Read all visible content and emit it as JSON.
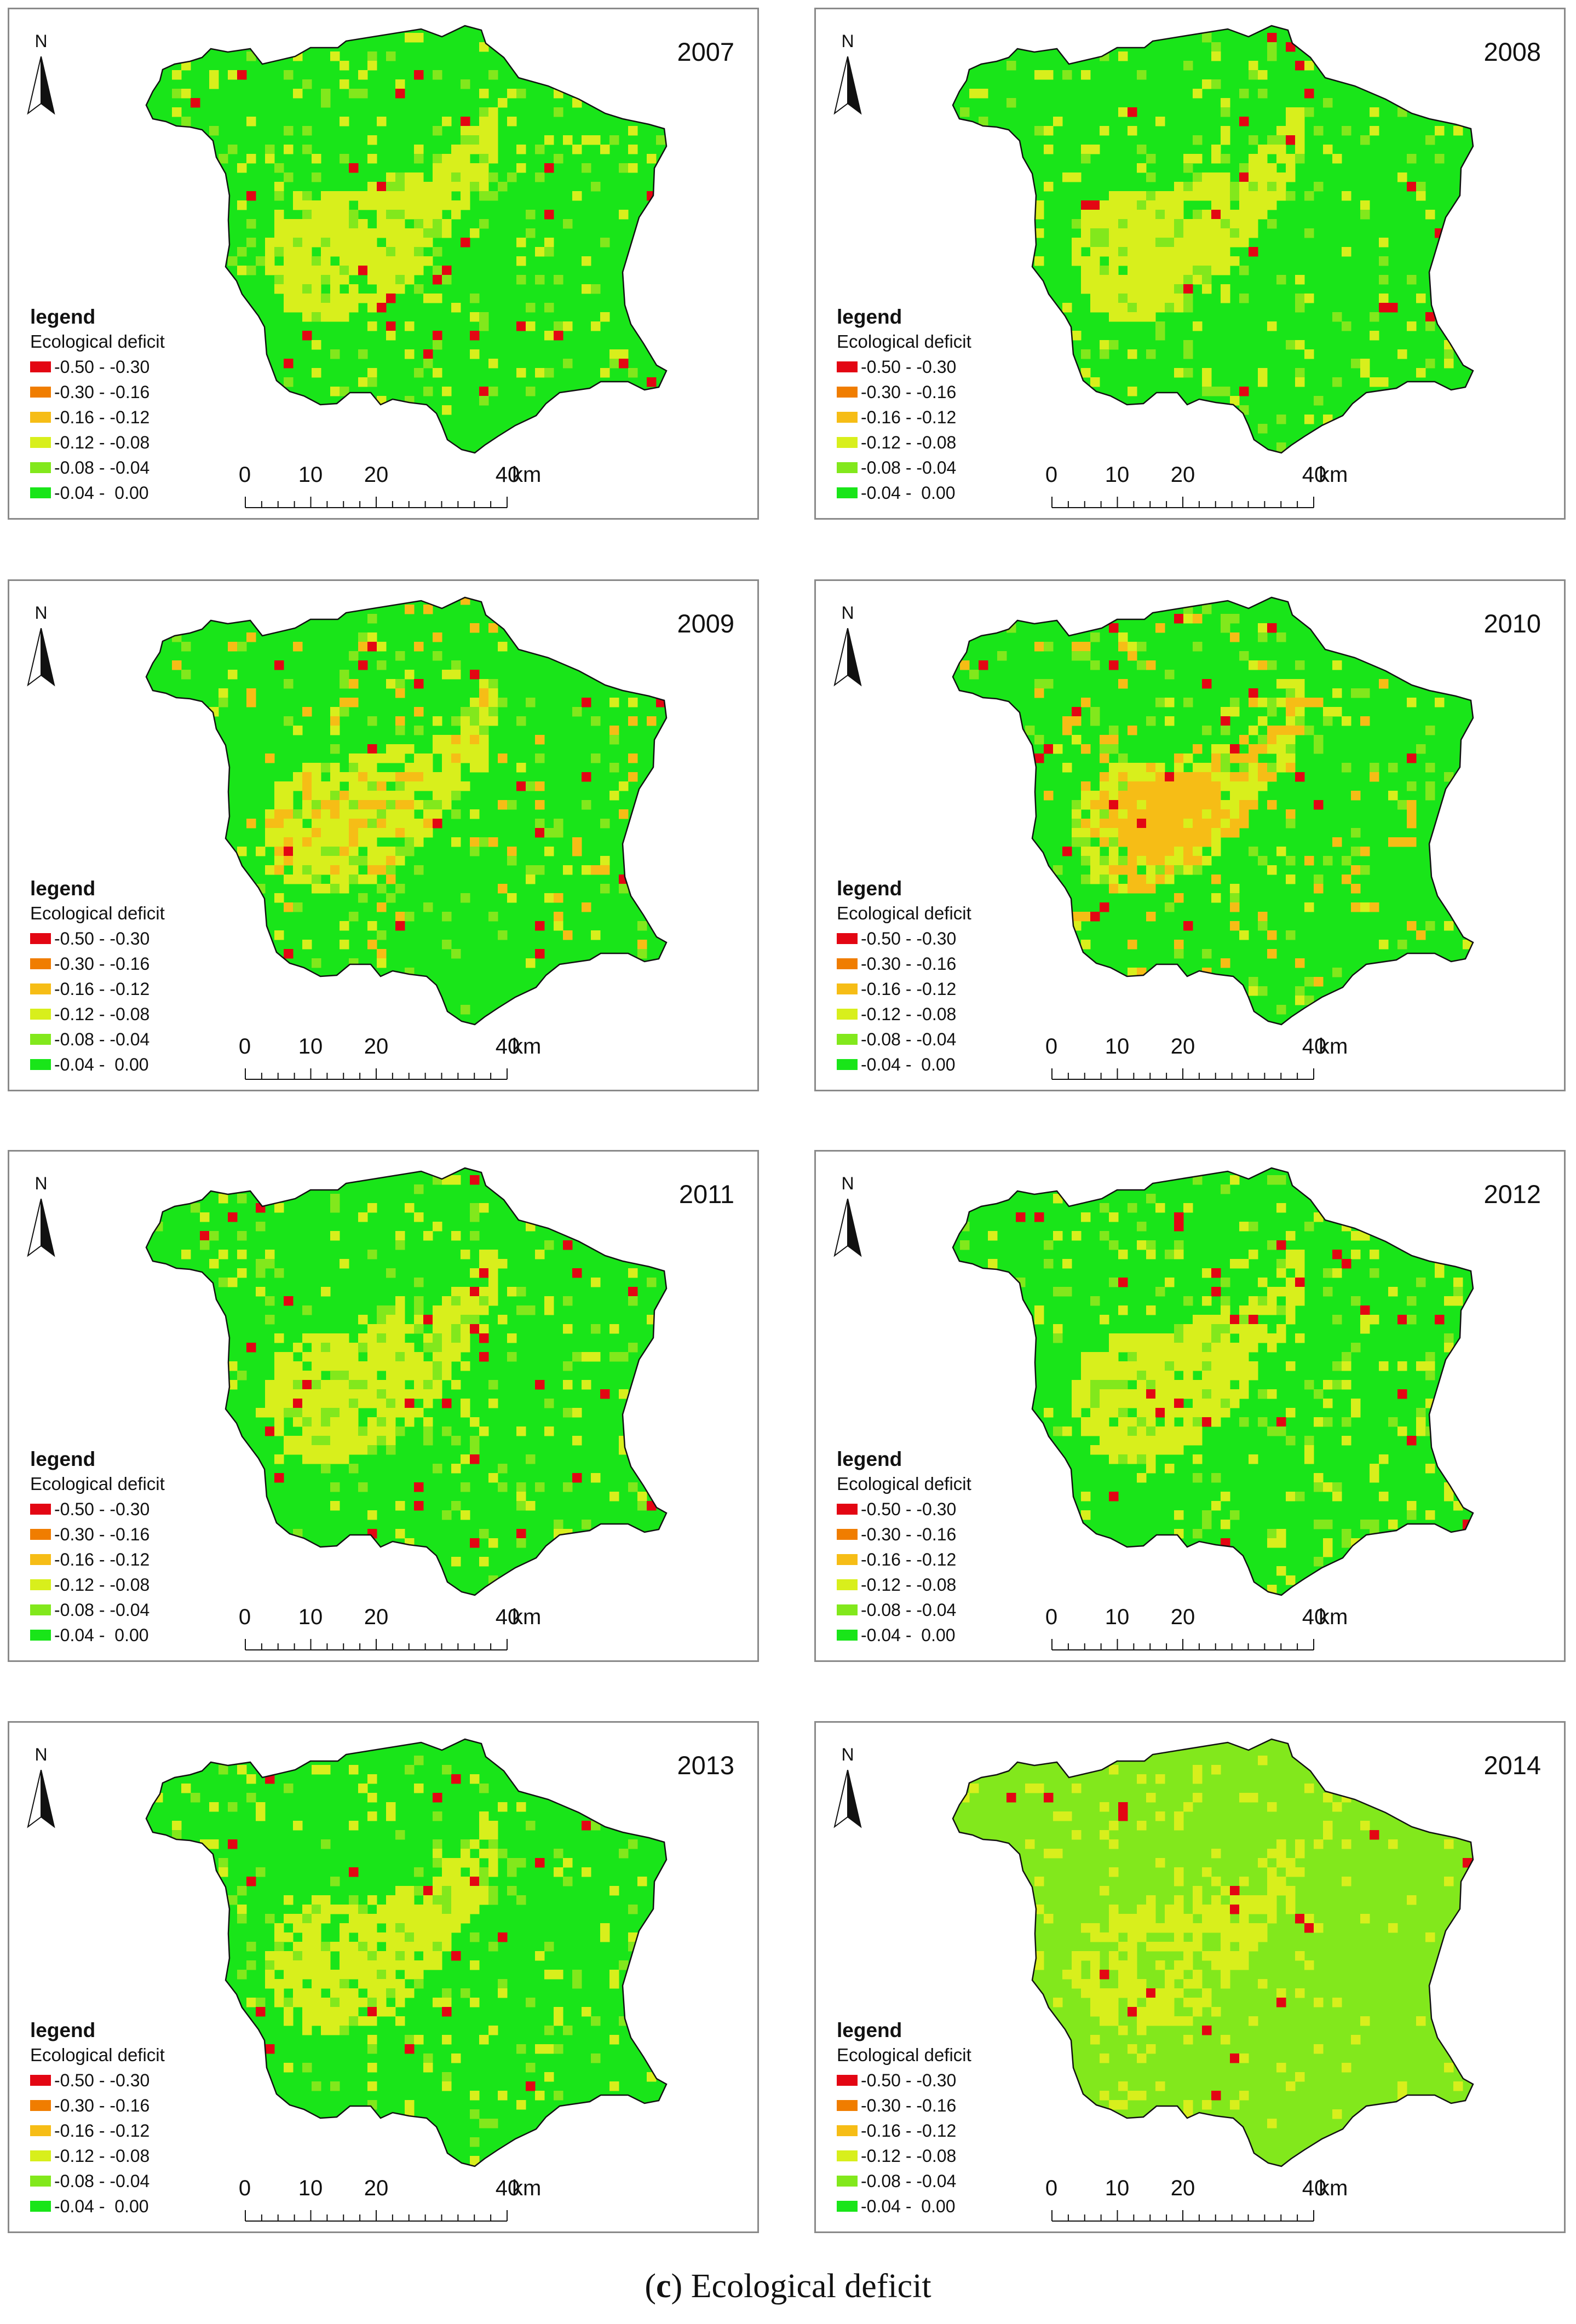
{
  "panels": [
    {
      "year": "2007",
      "emphasis": "baseline"
    },
    {
      "year": "2008",
      "emphasis": "baseline"
    },
    {
      "year": "2009",
      "emphasis": "more-orange"
    },
    {
      "year": "2010",
      "emphasis": "orange-core"
    },
    {
      "year": "2011",
      "emphasis": "baseline"
    },
    {
      "year": "2012",
      "emphasis": "baseline"
    },
    {
      "year": "2013",
      "emphasis": "baseline"
    },
    {
      "year": "2014",
      "emphasis": "lighter-green"
    }
  ],
  "north_label": "N",
  "legend": {
    "title": "legend",
    "subtitle": "Ecological deficit",
    "items": [
      {
        "label": "-0.50 - -0.30",
        "color": "#e30613"
      },
      {
        "label": "-0.30 - -0.16",
        "color": "#f07d00"
      },
      {
        "label": "-0.16 - -0.12",
        "color": "#f6bd16"
      },
      {
        "label": "-0.12 - -0.08",
        "color": "#d8ef1c"
      },
      {
        "label": "-0.08 - -0.04",
        "color": "#82e81c"
      },
      {
        "label": "-0.04 -  0.00",
        "color": "#19e519"
      }
    ]
  },
  "scale_bar": {
    "ticks": [
      "0",
      "10",
      "20",
      "40"
    ],
    "unit": "km"
  },
  "caption": {
    "letter": "c",
    "open_paren": "(",
    "close_paren": ")",
    "text": "Ecological deficit"
  }
}
